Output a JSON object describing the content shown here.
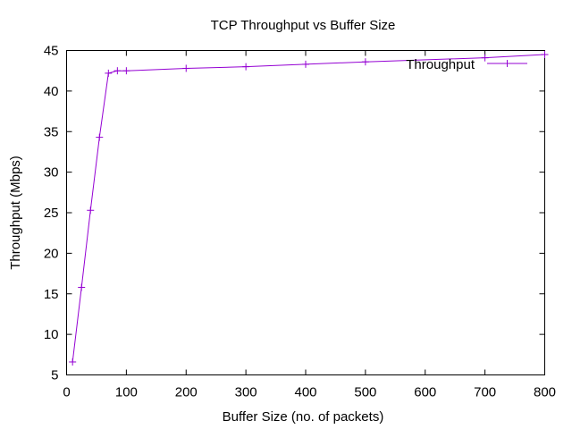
{
  "chart_data": {
    "type": "line",
    "title": "TCP Throughput vs Buffer Size",
    "xlabel": "Buffer Size (no. of packets)",
    "ylabel": "Throughput (Mbps)",
    "xlim": [
      0,
      800
    ],
    "ylim": [
      5,
      45
    ],
    "xticks": [
      0,
      100,
      200,
      300,
      400,
      500,
      600,
      700,
      800
    ],
    "yticks": [
      5,
      10,
      15,
      20,
      25,
      30,
      35,
      40,
      45
    ],
    "grid": false,
    "legend_position": "top-right",
    "series": [
      {
        "name": "Throughput",
        "color": "#9400d3",
        "marker": "plus",
        "x": [
          10,
          25,
          40,
          55,
          70,
          85,
          100,
          200,
          300,
          400,
          500,
          700,
          800
        ],
        "y": [
          6.6,
          15.8,
          25.3,
          34.3,
          42.2,
          42.5,
          42.5,
          42.8,
          43.0,
          43.3,
          43.6,
          44.1,
          44.5
        ]
      }
    ]
  }
}
